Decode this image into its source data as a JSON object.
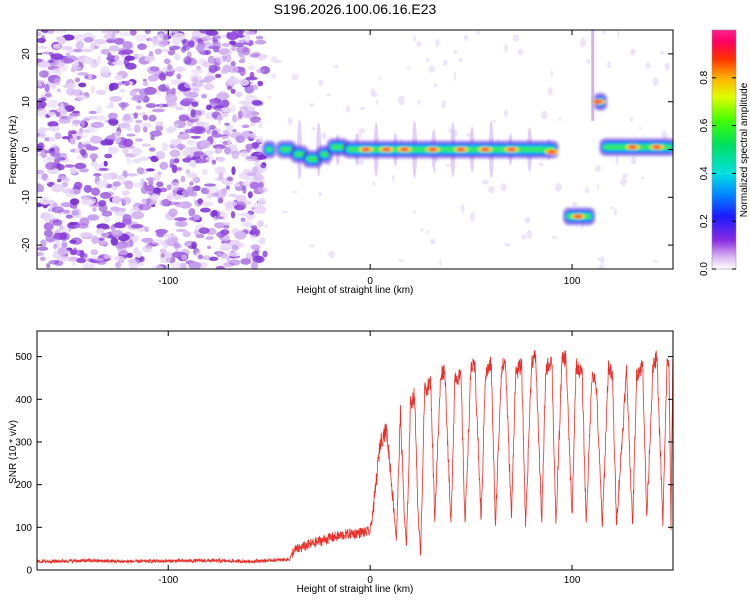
{
  "figure": {
    "title": "S196.2026.100.06.16.E23"
  },
  "chart_data": [
    {
      "type": "heatmap",
      "name": "spectrogram",
      "title": "S196.2026.100.06.16.E23",
      "xlabel": "Height of straight line (km)",
      "ylabel": "Frequency (Hz)",
      "xlim": [
        -165,
        150
      ],
      "ylim": [
        -25,
        25
      ],
      "xticks": [
        -100,
        0,
        100
      ],
      "yticks": [
        -20,
        -10,
        0,
        10,
        20
      ],
      "xtick_labels": [
        "-100",
        "0",
        "100"
      ],
      "ytick_labels": [
        "-20",
        "-10",
        "0",
        "10",
        "20"
      ],
      "colorbar": {
        "label": "Normalized spectral amplitude",
        "range": [
          0,
          1
        ],
        "ticks": [
          0.0,
          0.2,
          0.4,
          0.6,
          0.8
        ],
        "tick_labels": [
          "0.0",
          "0.2",
          "0.4",
          "0.6",
          "0.8"
        ]
      },
      "noise_region": {
        "x_from": -165,
        "x_to": -52
      },
      "signal_segments": [
        {
          "x_from": -52,
          "x_to": -48,
          "freq": 0
        },
        {
          "x_from": -45,
          "x_to": -38,
          "freq": 0
        },
        {
          "x_from": -38,
          "x_to": -32,
          "freq": -1
        },
        {
          "x_from": -32,
          "x_to": -25,
          "freq": -2
        },
        {
          "x_from": -25,
          "x_to": -20,
          "freq": -1
        },
        {
          "x_from": -20,
          "x_to": -12,
          "freq": 0.5
        },
        {
          "x_from": -12,
          "x_to": 92,
          "freq": 0
        },
        {
          "x_from": 97,
          "x_to": 110,
          "freq": -14
        },
        {
          "x_from": 112,
          "x_to": 116,
          "freq": 10
        },
        {
          "x_from": 115,
          "x_to": 150,
          "freq": 0.5
        }
      ]
    },
    {
      "type": "line",
      "name": "snr",
      "xlabel": "Height of straight line (km)",
      "ylabel": "SNR (10 * v/v)",
      "xlim": [
        -165,
        150
      ],
      "ylim": [
        0,
        560
      ],
      "xticks": [
        -100,
        0,
        100
      ],
      "yticks": [
        0,
        100,
        200,
        300,
        400,
        500
      ],
      "xtick_labels": [
        "-100",
        "0",
        "100"
      ],
      "ytick_labels": [
        "0",
        "100",
        "200",
        "300",
        "400",
        "500"
      ],
      "color": "#e8302a",
      "series": [
        {
          "name": "SNR",
          "x": [
            -165,
            -140,
            -120,
            -100,
            -80,
            -60,
            -40,
            -38,
            -30,
            -20,
            -10,
            0,
            2,
            5,
            8,
            10,
            13,
            15,
            17,
            18,
            20,
            22,
            24,
            25,
            27,
            30,
            32,
            35,
            37,
            40,
            42,
            45,
            47,
            50,
            52,
            55,
            57,
            60,
            62,
            65,
            67,
            70,
            72,
            75,
            77,
            80,
            82,
            85,
            87,
            90,
            92,
            95,
            97,
            100,
            102,
            105,
            107,
            110,
            112,
            115,
            118,
            120,
            122,
            125,
            127,
            130,
            132,
            135,
            137,
            140,
            142,
            145,
            147,
            148,
            149,
            150
          ],
          "y": [
            20,
            22,
            20,
            21,
            22,
            20,
            25,
            45,
            60,
            75,
            85,
            90,
            160,
            300,
            330,
            240,
            70,
            370,
            120,
            55,
            390,
            410,
            100,
            45,
            420,
            440,
            120,
            460,
            470,
            100,
            455,
            450,
            105,
            480,
            470,
            110,
            455,
            485,
            100,
            470,
            490,
            120,
            460,
            480,
            105,
            490,
            500,
            110,
            470,
            495,
            100,
            490,
            500,
            120,
            480,
            460,
            110,
            470,
            430,
            100,
            480,
            450,
            110,
            320,
            470,
            100,
            460,
            480,
            120,
            470,
            500,
            110,
            480,
            490,
            100,
            520
          ]
        }
      ]
    }
  ]
}
